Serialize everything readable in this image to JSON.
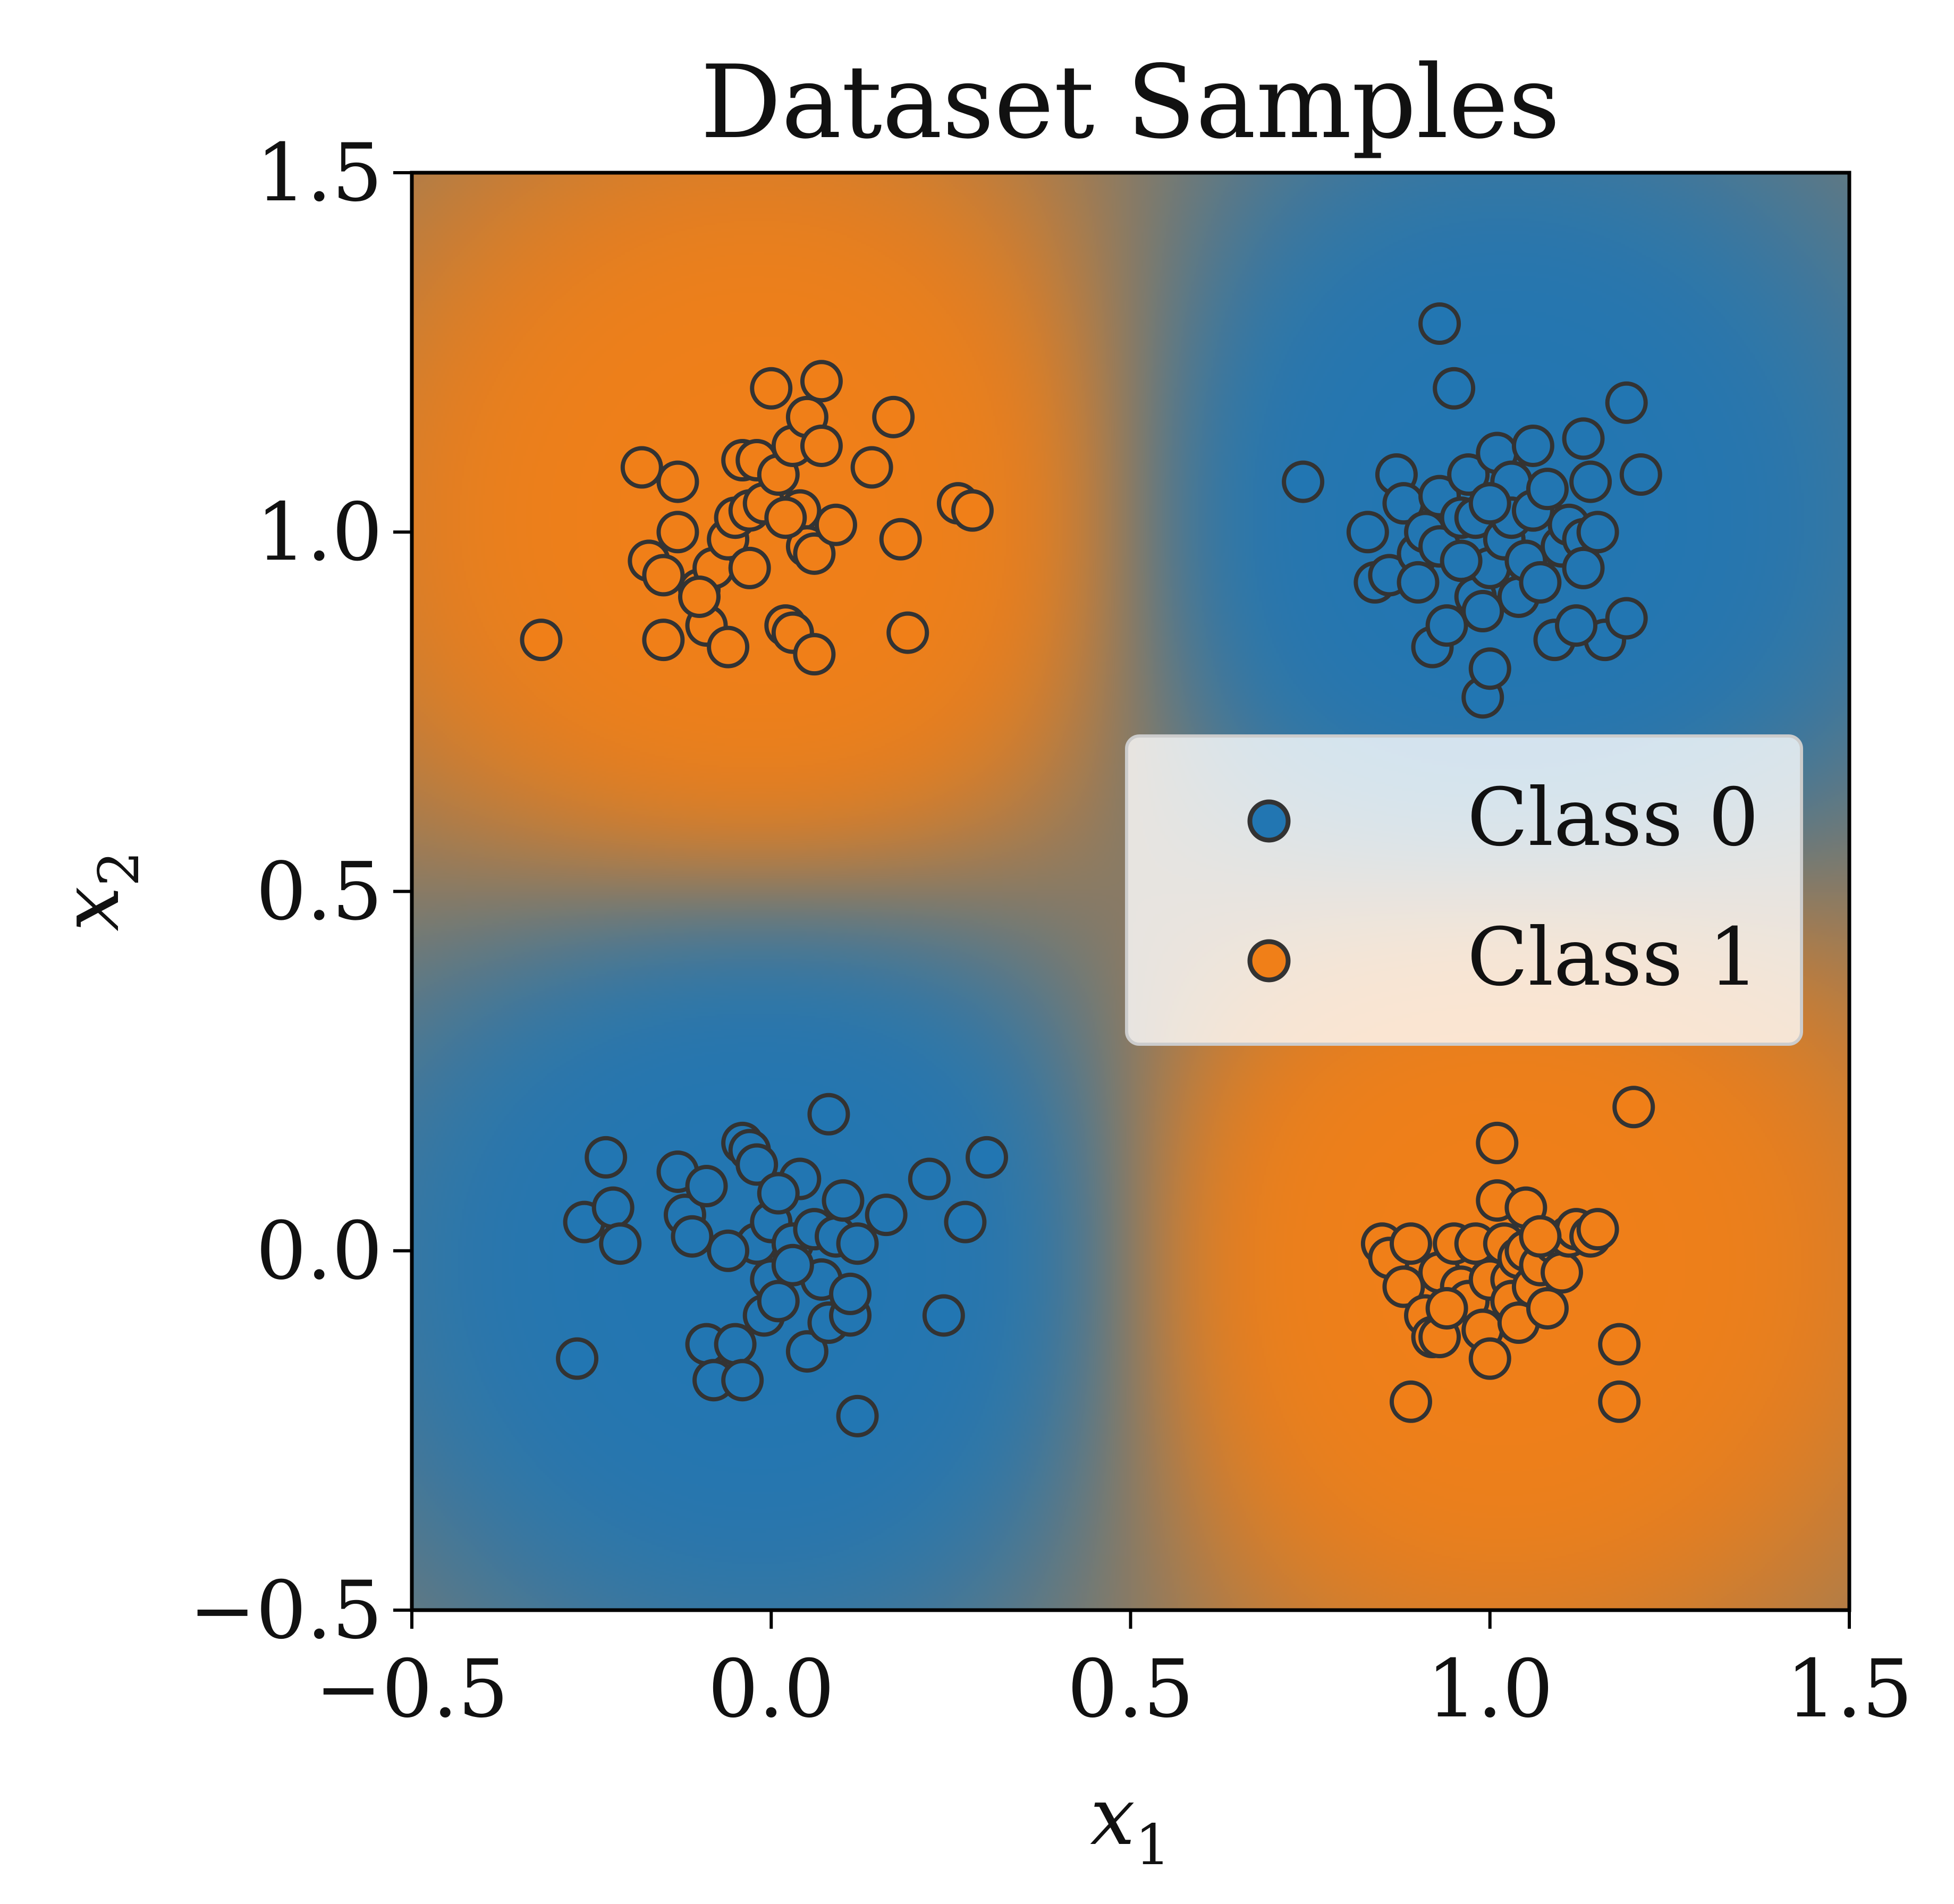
{
  "chart_data": {
    "type": "scatter",
    "title": "Dataset Samples",
    "xlabel": "x",
    "xlabel_sub": "1",
    "ylabel": "x",
    "ylabel_sub": "2",
    "xlim": [
      -0.5,
      1.5
    ],
    "ylim": [
      -0.5,
      1.5
    ],
    "xticks": [
      -0.5,
      0.0,
      0.5,
      1.0,
      1.5
    ],
    "yticks": [
      -0.5,
      0.0,
      0.5,
      1.0,
      1.5
    ],
    "xtick_labels": [
      "−0.5",
      "0.0",
      "0.5",
      "1.0",
      "1.5"
    ],
    "ytick_labels": [
      "−0.5",
      "0.0",
      "0.5",
      "1.0",
      "1.5"
    ],
    "grid": false,
    "legend_position": "center-right",
    "background": "decision-boundary shading (blue = Class 0 region, orange = Class 1 region)",
    "series": [
      {
        "name": "Class 0",
        "color": "#2276b2",
        "points": [
          [
            -0.26,
            0.04
          ],
          [
            -0.23,
            0.13
          ],
          [
            -0.22,
            0.06
          ],
          [
            -0.21,
            0.01
          ],
          [
            -0.27,
            -0.15
          ],
          [
            -0.13,
            0.11
          ],
          [
            -0.12,
            0.05
          ],
          [
            -0.11,
            0.02
          ],
          [
            -0.09,
            0.09
          ],
          [
            -0.09,
            -0.13
          ],
          [
            -0.08,
            -0.18
          ],
          [
            -0.05,
            -0.13
          ],
          [
            -0.04,
            0.15
          ],
          [
            -0.03,
            0.14
          ],
          [
            -0.02,
            0.12
          ],
          [
            -0.04,
            -0.18
          ],
          [
            -0.02,
            0.01
          ],
          [
            0.0,
            0.04
          ],
          [
            0.0,
            -0.04
          ],
          [
            -0.01,
            -0.09
          ],
          [
            0.01,
            -0.07
          ],
          [
            0.03,
            0.01
          ],
          [
            0.04,
            0.1
          ],
          [
            0.05,
            -0.14
          ],
          [
            0.06,
            0.03
          ],
          [
            0.07,
            -0.04
          ],
          [
            0.08,
            -0.1
          ],
          [
            0.08,
            0.19
          ],
          [
            0.09,
            0.02
          ],
          [
            0.1,
            0.07
          ],
          [
            0.11,
            -0.09
          ],
          [
            0.11,
            -0.06
          ],
          [
            0.12,
            0.01
          ],
          [
            0.12,
            -0.23
          ],
          [
            0.16,
            0.05
          ],
          [
            0.22,
            0.1
          ],
          [
            0.24,
            -0.09
          ],
          [
            0.27,
            0.04
          ],
          [
            0.3,
            0.13
          ],
          [
            -0.06,
            0.0
          ],
          [
            0.01,
            0.08
          ],
          [
            0.03,
            -0.02
          ],
          [
            0.74,
            1.07
          ],
          [
            0.83,
            1.0
          ],
          [
            0.84,
            0.93
          ],
          [
            0.86,
            0.94
          ],
          [
            0.87,
            1.08
          ],
          [
            0.88,
            1.04
          ],
          [
            0.9,
            0.97
          ],
          [
            0.9,
            0.93
          ],
          [
            0.91,
            1.0
          ],
          [
            0.92,
            0.84
          ],
          [
            0.93,
            1.05
          ],
          [
            0.93,
            0.98
          ],
          [
            0.93,
            1.29
          ],
          [
            0.94,
            0.87
          ],
          [
            0.95,
            1.2
          ],
          [
            0.96,
            1.02
          ],
          [
            0.97,
            1.08
          ],
          [
            0.98,
            1.02
          ],
          [
            0.98,
            0.91
          ],
          [
            0.99,
            0.89
          ],
          [
            0.99,
            0.77
          ],
          [
            1.0,
            0.81
          ],
          [
            1.0,
            0.95
          ],
          [
            1.01,
            1.11
          ],
          [
            1.02,
            0.99
          ],
          [
            1.03,
            1.07
          ],
          [
            1.03,
            1.02
          ],
          [
            1.04,
            0.91
          ],
          [
            1.05,
            0.96
          ],
          [
            1.06,
            1.03
          ],
          [
            1.06,
            1.12
          ],
          [
            1.07,
            0.93
          ],
          [
            1.08,
            1.06
          ],
          [
            1.09,
            0.85
          ],
          [
            1.1,
            0.98
          ],
          [
            1.11,
            1.01
          ],
          [
            1.13,
            1.13
          ],
          [
            1.13,
            0.99
          ],
          [
            1.13,
            0.95
          ],
          [
            1.14,
            1.07
          ],
          [
            1.15,
            1.0
          ],
          [
            1.16,
            0.85
          ],
          [
            1.19,
            1.18
          ],
          [
            1.19,
            0.88
          ],
          [
            1.21,
            1.08
          ],
          [
            1.12,
            0.87
          ],
          [
            1.0,
            1.04
          ],
          [
            0.96,
            0.96
          ]
        ]
      },
      {
        "name": "Class 1",
        "color": "#f07f18",
        "points": [
          [
            -0.32,
            0.85
          ],
          [
            -0.18,
            1.09
          ],
          [
            -0.17,
            0.96
          ],
          [
            -0.15,
            0.94
          ],
          [
            -0.15,
            0.85
          ],
          [
            -0.13,
            1.0
          ],
          [
            -0.13,
            1.07
          ],
          [
            -0.1,
            0.92
          ],
          [
            -0.09,
            0.87
          ],
          [
            -0.08,
            0.95
          ],
          [
            -0.06,
            0.84
          ],
          [
            -0.06,
            0.99
          ],
          [
            -0.05,
            1.02
          ],
          [
            -0.04,
            1.1
          ],
          [
            -0.03,
            1.03
          ],
          [
            -0.03,
            0.95
          ],
          [
            -0.02,
            1.1
          ],
          [
            -0.01,
            1.04
          ],
          [
            0.0,
            1.2
          ],
          [
            0.01,
            1.08
          ],
          [
            0.02,
            0.87
          ],
          [
            0.03,
            0.86
          ],
          [
            0.03,
            1.12
          ],
          [
            0.04,
            1.03
          ],
          [
            0.05,
            0.98
          ],
          [
            0.05,
            1.16
          ],
          [
            0.06,
            0.83
          ],
          [
            0.06,
            0.97
          ],
          [
            0.07,
            1.21
          ],
          [
            0.07,
            1.12
          ],
          [
            0.09,
            1.01
          ],
          [
            0.14,
            1.09
          ],
          [
            0.17,
            1.16
          ],
          [
            0.18,
            0.99
          ],
          [
            0.19,
            0.86
          ],
          [
            0.26,
            1.04
          ],
          [
            0.28,
            1.03
          ],
          [
            0.02,
            1.02
          ],
          [
            -0.1,
            0.91
          ],
          [
            0.85,
            0.01
          ],
          [
            0.86,
            -0.01
          ],
          [
            0.88,
            -0.05
          ],
          [
            0.89,
            -0.21
          ],
          [
            0.89,
            0.01
          ],
          [
            0.91,
            -0.09
          ],
          [
            0.92,
            -0.12
          ],
          [
            0.93,
            -0.03
          ],
          [
            0.93,
            -0.12
          ],
          [
            0.95,
            0.01
          ],
          [
            0.96,
            -0.05
          ],
          [
            0.97,
            -0.07
          ],
          [
            0.98,
            0.01
          ],
          [
            0.99,
            -0.11
          ],
          [
            1.0,
            -0.04
          ],
          [
            1.0,
            -0.15
          ],
          [
            1.01,
            0.07
          ],
          [
            1.01,
            0.15
          ],
          [
            1.02,
            0.01
          ],
          [
            1.03,
            -0.04
          ],
          [
            1.03,
            -0.07
          ],
          [
            1.04,
            -0.01
          ],
          [
            1.04,
            -0.1
          ],
          [
            1.05,
            0.06
          ],
          [
            1.05,
            0.0
          ],
          [
            1.06,
            -0.05
          ],
          [
            1.07,
            -0.02
          ],
          [
            1.08,
            -0.08
          ],
          [
            1.09,
            0.01
          ],
          [
            1.1,
            -0.03
          ],
          [
            1.11,
            0.02
          ],
          [
            1.12,
            0.03
          ],
          [
            1.14,
            0.02
          ],
          [
            1.15,
            0.03
          ],
          [
            1.18,
            -0.13
          ],
          [
            1.18,
            -0.21
          ],
          [
            1.2,
            0.2
          ],
          [
            0.94,
            -0.08
          ],
          [
            1.07,
            0.02
          ]
        ]
      }
    ]
  }
}
